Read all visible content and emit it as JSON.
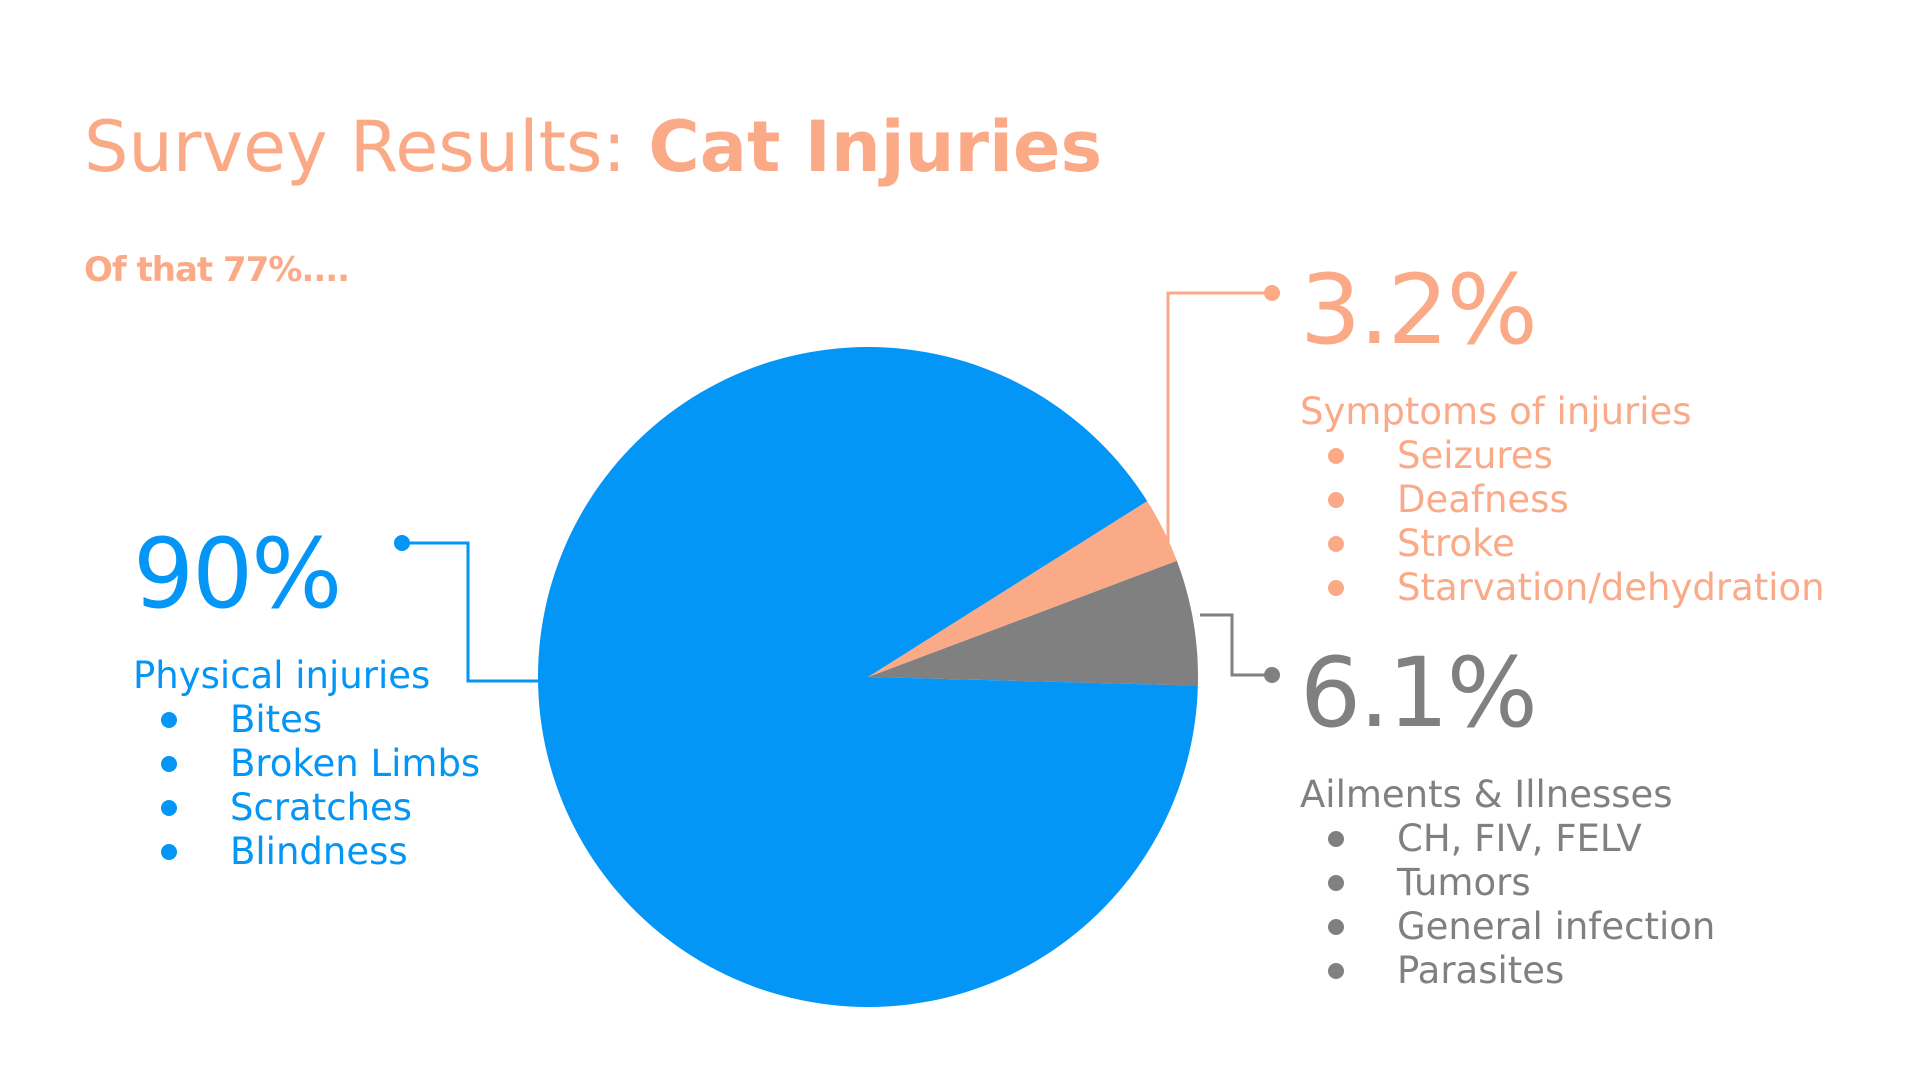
{
  "title": {
    "regular": "Survey Results: ",
    "bold": "Cat Injuries"
  },
  "subtitle": "Of that 77%....",
  "colors": {
    "physical": "#0396F7",
    "symptoms": "#FBAA88",
    "ailments": "#808080"
  },
  "chart_data": {
    "type": "pie",
    "title": "Survey Results: Cat Injuries",
    "subtitle": "Of that 77%....",
    "slices": [
      {
        "name": "Physical injuries",
        "value": 90,
        "label": "90%",
        "color": "#0396F7",
        "items": [
          "Bites",
          "Broken Limbs",
          "Scratches",
          "Blindness"
        ]
      },
      {
        "name": "Symptoms of injuries",
        "value": 3.2,
        "label": "3.2%",
        "color": "#FBAA88",
        "items": [
          "Seizures",
          "Deafness",
          "Stroke",
          "Starvation/dehydration"
        ]
      },
      {
        "name": "Ailments & Illnesses",
        "value": 6.1,
        "label": "6.1%",
        "color": "#808080",
        "items": [
          "CH, FIV, FELV",
          "Tumors",
          "General infection",
          "Parasites"
        ]
      }
    ],
    "legend": "callouts"
  }
}
